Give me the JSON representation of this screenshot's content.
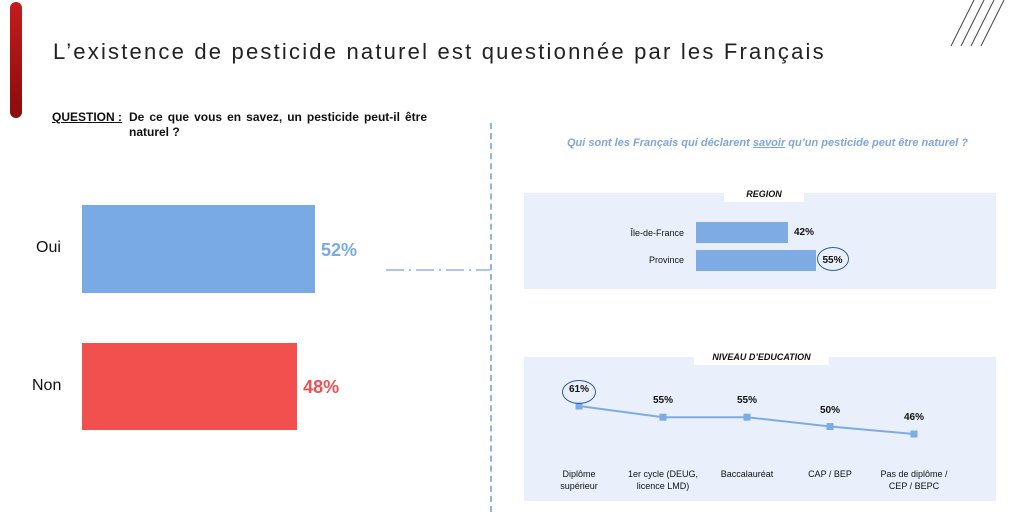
{
  "header": {
    "title": "L’existence de pesticide naturel est questionnée par les Français",
    "accent_color": "#b31414"
  },
  "question": {
    "label": "QUESTION",
    "separator": " :",
    "text": "De ce que vous en savez, un pesticide peut-il être naturel ?"
  },
  "right_header": {
    "before": "Qui sont les Français qui déclarent ",
    "emphasis": "savoir",
    "after": " qu’un pesticide peut être naturel ?"
  },
  "chart_data": [
    {
      "type": "bar",
      "orientation": "horizontal",
      "categories": [
        "Oui",
        "Non"
      ],
      "values": [
        52,
        48
      ],
      "value_labels": [
        "52%",
        "48%"
      ],
      "colors": [
        "#7aaae6",
        "#f24f4f"
      ],
      "unit": "%"
    },
    {
      "type": "bar",
      "orientation": "horizontal",
      "title": "REGION",
      "categories": [
        "Île-de-France",
        "Province"
      ],
      "values": [
        42,
        55
      ],
      "value_labels": [
        "42%",
        "55%"
      ],
      "highlighted": "Province",
      "colors": [
        "#7fabe4"
      ],
      "unit": "%"
    },
    {
      "type": "line",
      "title": "NIVEAU D’EDUCATION",
      "categories": [
        "Diplôme supérieur",
        "1er cycle (DEUG, licence LMD)",
        "Baccalauréat",
        "CAP / BEP",
        "Pas de diplôme / CEP / BEPC"
      ],
      "category_lines": [
        [
          "Diplôme",
          "supérieur"
        ],
        [
          "1er cycle (DEUG,",
          "licence LMD)"
        ],
        [
          "Baccalauréat"
        ],
        [
          "CAP / BEP"
        ],
        [
          "Pas de diplôme /",
          "CEP / BEPC"
        ]
      ],
      "values": [
        61,
        55,
        55,
        50,
        46
      ],
      "value_labels": [
        "61%",
        "55%",
        "55%",
        "50%",
        "46%"
      ],
      "highlighted": "Diplôme supérieur",
      "colors": [
        "#7fabe4"
      ],
      "unit": "%"
    }
  ]
}
